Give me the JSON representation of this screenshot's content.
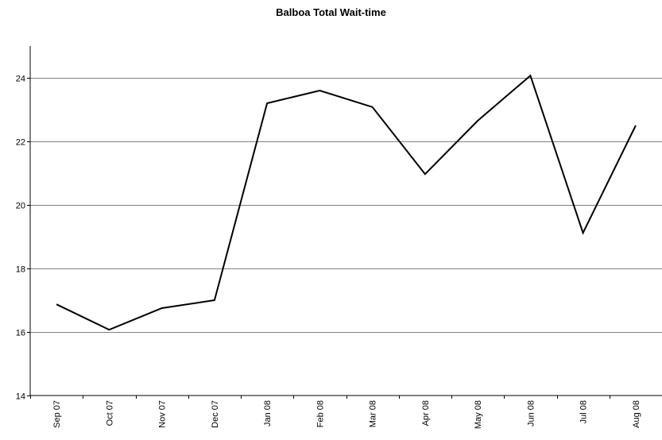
{
  "chart_data": {
    "type": "line",
    "title": "Balboa Total Wait-time",
    "xlabel": "",
    "ylabel": "",
    "categories": [
      "Sep 07",
      "Oct 07",
      "Nov 07",
      "Dec 07",
      "Jan 08",
      "Feb 08",
      "Mar 08",
      "Apr 08",
      "May 08",
      "Jun 08",
      "Jul 08",
      "Aug 08"
    ],
    "series": [
      {
        "values": [
          16.87,
          16.07,
          16.75,
          17.0,
          23.2,
          23.6,
          23.08,
          20.97,
          22.65,
          24.07,
          19.12,
          22.5
        ],
        "color": "#000000"
      }
    ],
    "ylim": [
      14,
      25
    ],
    "yticks": [
      14,
      16,
      18,
      20,
      22,
      24
    ],
    "grid": true,
    "legend": "none"
  }
}
